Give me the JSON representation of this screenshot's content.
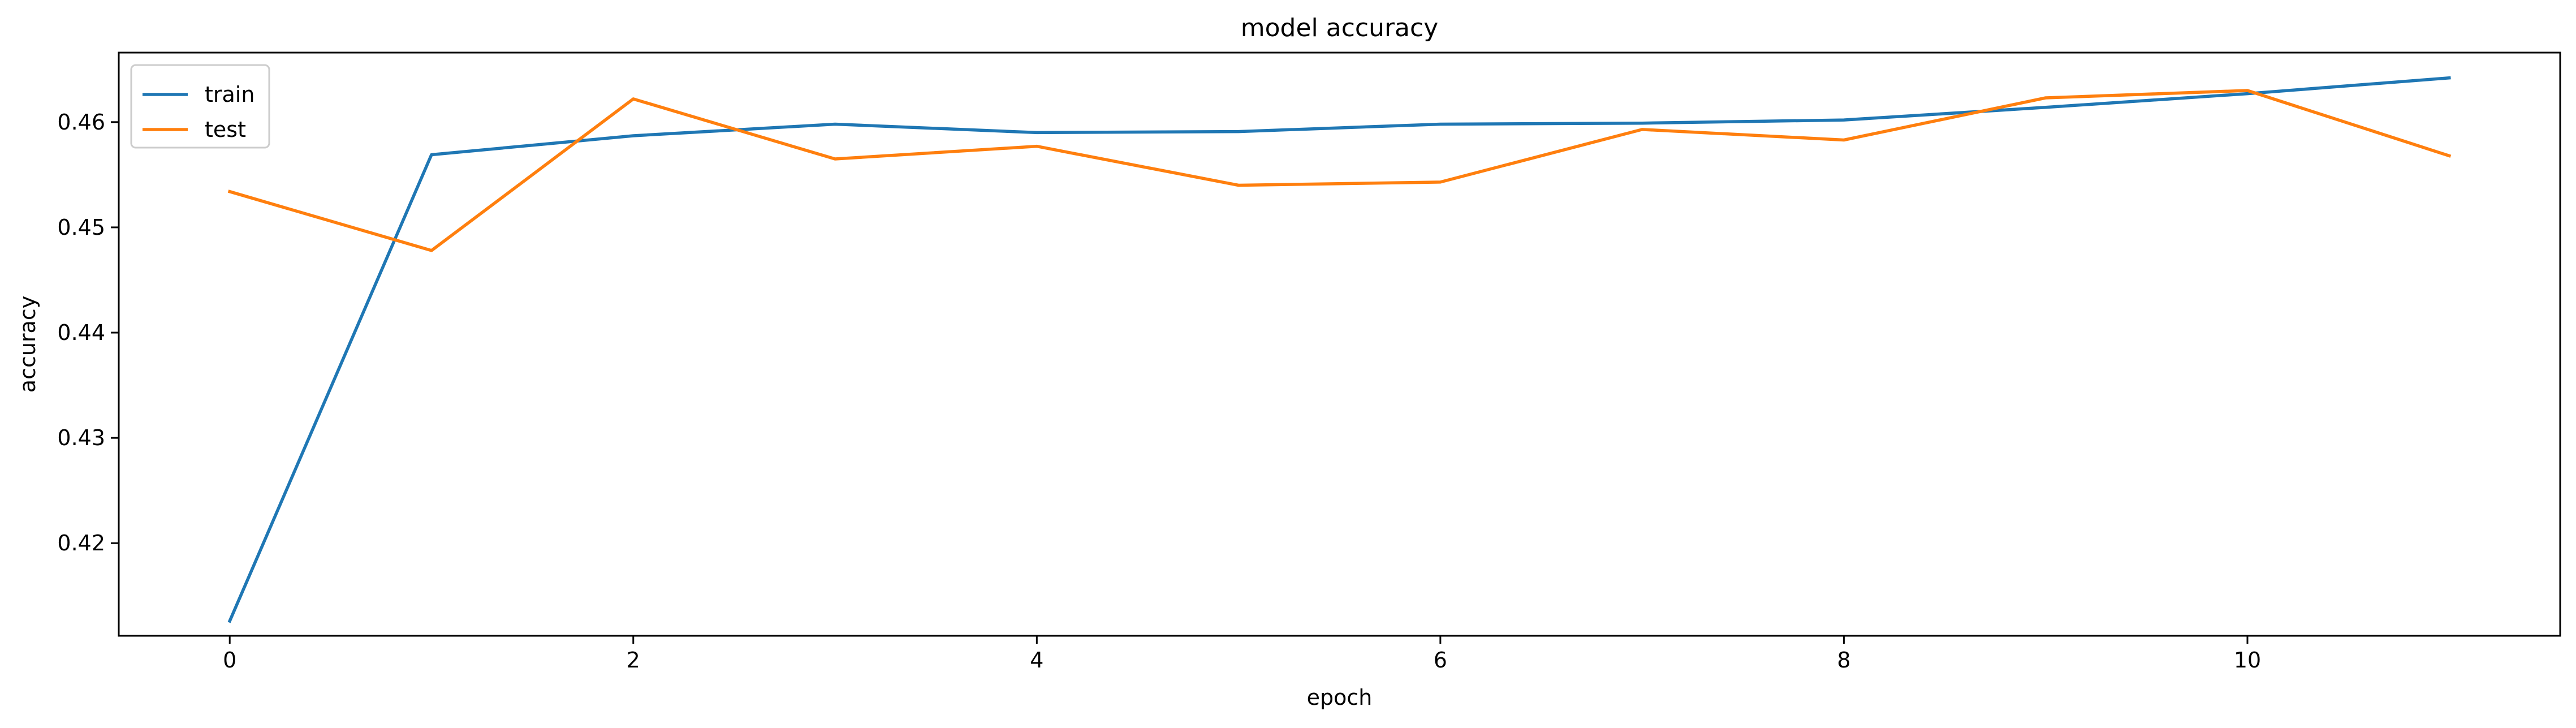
{
  "chart_data": {
    "type": "line",
    "title": "model accuracy",
    "xlabel": "epoch",
    "ylabel": "accuracy",
    "x": [
      0,
      1,
      2,
      3,
      4,
      5,
      6,
      7,
      8,
      9,
      10,
      11
    ],
    "xlim": [
      -0.55,
      11.55
    ],
    "ylim": [
      0.4112,
      0.4666
    ],
    "xticks": [
      0,
      2,
      4,
      6,
      8,
      10
    ],
    "yticks": [
      0.42,
      0.43,
      0.44,
      0.45,
      0.46
    ],
    "xtick_labels": [
      "0",
      "2",
      "4",
      "6",
      "8",
      "10"
    ],
    "ytick_labels": [
      "0.42",
      "0.43",
      "0.44",
      "0.45",
      "0.46"
    ],
    "grid": false,
    "legend_position": "upper-left",
    "series": [
      {
        "name": "train",
        "color": "#1f77b4",
        "values": [
          0.4126,
          0.4569,
          0.4587,
          0.4598,
          0.459,
          0.4591,
          0.4598,
          0.4599,
          0.4602,
          0.4614,
          0.4627,
          0.4642
        ]
      },
      {
        "name": "test",
        "color": "#ff7f0e",
        "values": [
          0.4534,
          0.4478,
          0.4622,
          0.4565,
          0.4577,
          0.454,
          0.4543,
          0.4593,
          0.4583,
          0.4623,
          0.463,
          0.4568
        ]
      }
    ]
  }
}
